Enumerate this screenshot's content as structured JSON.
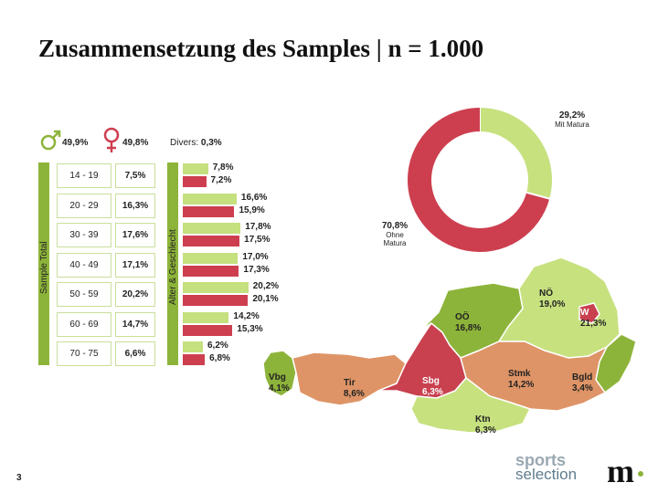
{
  "title": "Zusammensetzung des Samples | n = 1.000",
  "page_number": "3",
  "gender": {
    "male_pct": "49,9%",
    "female_pct": "49,8%",
    "diverse_label": "Divers:",
    "diverse_pct": "0,3%",
    "male_icon": "male-symbol-icon",
    "female_icon": "female-symbol-icon"
  },
  "sample_total_label": "Sample Total",
  "alter_geschlecht_label": "Alter & Geschlecht",
  "age_groups": [
    {
      "range": "14 - 19",
      "total": "7,5%"
    },
    {
      "range": "20 - 29",
      "total": "16,3%"
    },
    {
      "range": "30 - 39",
      "total": "17,6%"
    },
    {
      "range": "40 - 49",
      "total": "17,1%"
    },
    {
      "range": "50 - 59",
      "total": "20,2%"
    },
    {
      "range": "60 - 69",
      "total": "14,7%"
    },
    {
      "range": "70 - 75",
      "total": "6,6%"
    }
  ],
  "colors": {
    "male_green": "#c5e07e",
    "female_red": "#cd3f4f",
    "dark_green": "#8db43a",
    "light_green": "#c7e17f",
    "salmon": "#de9466",
    "map_red": "#c9404f"
  },
  "chart_data": [
    {
      "type": "bar",
      "orientation": "horizontal",
      "categories": [
        "14 - 19",
        "20 - 29",
        "30 - 39",
        "40 - 49",
        "50 - 59",
        "60 - 69",
        "70 - 75"
      ],
      "series": [
        {
          "values": [
            7.8,
            16.6,
            17.8,
            17.0,
            20.2,
            14.2,
            6.2
          ],
          "labels": [
            "7,8%",
            "16,6%",
            "17,8%",
            "17,0%",
            "20,2%",
            "14,2%",
            "6,2%"
          ]
        },
        {
          "values": [
            7.2,
            15.9,
            17.5,
            17.3,
            20.1,
            15.3,
            6.8
          ],
          "labels": [
            "7,2%",
            "15,9%",
            "17,5%",
            "17,3%",
            "20,1%",
            "15,3%",
            "6,8%"
          ]
        }
      ]
    },
    {
      "type": "pie",
      "donut": true,
      "slices": [
        {
          "label": "Mit Matura",
          "value": 29.2,
          "value_label": "29,2%",
          "color": "#c7e17f"
        },
        {
          "label": "Ohne Matura",
          "value": 70.8,
          "value_label": "70,8%",
          "color": "#cd3f4f"
        }
      ]
    },
    {
      "type": "map",
      "regions": [
        {
          "name": "Vbg",
          "value": "4,1%"
        },
        {
          "name": "Tir",
          "value": "8,6%"
        },
        {
          "name": "Sbg",
          "value": "6,3%"
        },
        {
          "name": "OÖ",
          "value": "16,8%"
        },
        {
          "name": "NÖ",
          "value": "19,0%"
        },
        {
          "name": "W",
          "value": "21,3%"
        },
        {
          "name": "Stmk",
          "value": "14,2%"
        },
        {
          "name": "Ktn",
          "value": "6,3%"
        },
        {
          "name": "Bgld",
          "value": "3,4%"
        }
      ]
    }
  ],
  "logos": {
    "sports_top": "sports",
    "sports_bottom": "selection",
    "m_logo": "m."
  }
}
